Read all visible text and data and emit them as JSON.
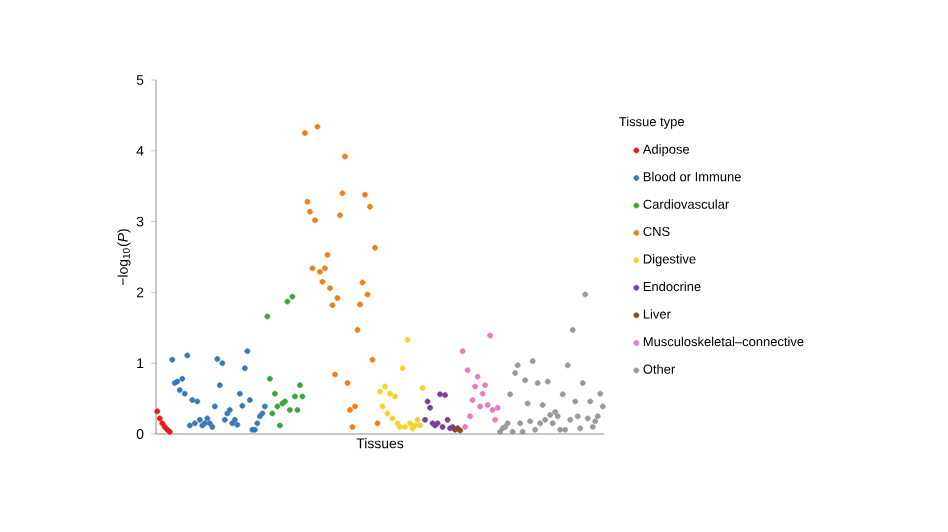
{
  "chart_data": {
    "type": "scatter",
    "xlabel": "Tissues",
    "ylabel": "−log$_{10}$(*P*)",
    "legend_title": "Tissue type",
    "legend": "right",
    "tick_labels": "y",
    "ylim": [
      0,
      5
    ],
    "yticks": [
      0,
      1,
      2,
      3,
      4,
      5
    ],
    "categories": [
      null,
      null,
      null,
      null,
      null,
      null,
      null,
      null,
      null,
      null,
      null,
      null,
      null,
      null,
      null,
      null,
      null,
      null,
      null,
      null,
      null,
      null,
      null,
      null,
      null,
      null,
      null,
      null,
      null,
      null,
      null,
      null,
      null,
      null,
      null,
      null,
      null,
      null,
      null,
      null,
      null,
      null,
      null,
      null,
      null,
      null,
      null,
      null,
      null,
      null,
      null,
      null,
      null,
      null,
      null,
      null,
      null,
      null,
      null,
      null,
      null,
      null,
      null,
      null,
      null,
      null,
      null,
      null,
      null,
      null,
      null,
      null,
      null,
      null,
      null,
      null,
      null,
      null,
      null,
      null,
      null,
      null,
      null,
      null,
      null,
      null,
      null,
      null,
      null,
      null,
      null,
      null,
      null,
      null,
      null,
      null,
      null,
      null,
      null,
      null,
      null,
      null,
      null,
      null,
      null,
      null,
      null,
      null,
      null,
      null,
      null,
      null,
      null,
      null,
      null,
      null,
      null,
      null,
      null,
      null,
      null,
      null,
      null,
      null,
      null,
      null,
      null,
      null,
      null,
      null,
      null,
      null,
      null,
      null,
      null,
      null,
      null,
      null,
      null,
      null,
      null,
      null,
      null,
      null,
      null,
      null,
      null,
      null,
      null,
      null,
      null,
      null,
      null,
      null,
      null,
      null,
      null,
      null,
      null,
      null,
      null,
      null,
      null,
      null,
      null,
      null,
      null,
      null,
      null,
      null,
      null,
      null,
      null,
      null,
      null,
      null,
      null,
      null,
      null
    ],
    "series": [
      {
        "name": "Adipose",
        "color": "#e41a1c",
        "values": [
          0.32,
          0.22,
          0.15,
          0.1,
          0.06,
          0.03,
          null,
          null,
          null,
          null,
          null,
          null,
          null,
          null,
          null,
          null,
          null,
          null,
          null,
          null,
          null,
          null,
          null,
          null,
          null,
          null,
          null,
          null,
          null,
          null,
          null,
          null,
          null,
          null,
          null,
          null,
          null,
          null,
          null,
          null,
          null,
          null,
          null,
          null,
          null,
          null,
          null,
          null,
          null,
          null,
          null,
          null,
          null,
          null,
          null,
          null,
          null,
          null,
          null,
          null,
          null,
          null,
          null,
          null,
          null,
          null,
          null,
          null,
          null,
          null,
          null,
          null,
          null,
          null,
          null,
          null,
          null,
          null,
          null,
          null,
          null,
          null,
          null,
          null,
          null,
          null,
          null,
          null,
          null,
          null,
          null,
          null,
          null,
          null,
          null,
          null,
          null,
          null,
          null,
          null,
          null,
          null,
          null,
          null,
          null,
          null,
          null,
          null,
          null,
          null,
          null,
          null,
          null,
          null,
          null,
          null,
          null,
          null,
          null,
          null,
          null,
          null,
          null,
          null,
          null,
          null,
          null,
          null,
          null,
          null,
          null,
          null,
          null,
          null,
          null,
          null,
          null,
          null,
          null,
          null,
          null,
          null,
          null,
          null,
          null,
          null,
          null,
          null,
          null,
          null,
          null,
          null,
          null,
          null,
          null,
          null,
          null,
          null,
          null,
          null,
          null,
          null,
          null,
          null,
          null,
          null,
          null,
          null,
          null,
          null,
          null,
          null,
          null,
          null,
          null,
          null,
          null,
          null,
          null
        ]
      },
      {
        "name": "Blood or Immune",
        "color": "#3a78b8",
        "values": [
          null,
          null,
          null,
          null,
          null,
          null,
          1.05,
          0.72,
          0.74,
          0.62,
          0.78,
          0.57,
          1.11,
          0.12,
          0.48,
          0.15,
          0.46,
          0.2,
          0.12,
          0.15,
          0.22,
          0.15,
          0.1,
          0.39,
          1.06,
          0.69,
          1.0,
          0.2,
          0.29,
          0.34,
          0.15,
          0.2,
          0.13,
          0.57,
          0.4,
          0.93,
          1.17,
          0.48,
          0.06,
          0.06,
          0.15,
          0.25,
          0.29,
          0.39,
          null,
          null,
          null,
          null,
          null,
          null,
          null,
          null,
          null,
          null,
          null,
          null,
          null,
          null,
          null,
          null,
          null,
          null,
          null,
          null,
          null,
          null,
          null,
          null,
          null,
          null,
          null,
          null,
          null,
          null,
          null,
          null,
          null,
          null,
          null,
          null,
          null,
          null,
          null,
          null,
          null,
          null,
          null,
          null,
          null,
          null,
          null,
          null,
          null,
          null,
          null,
          null,
          null,
          null,
          null,
          null,
          null,
          null,
          null,
          null,
          null,
          null,
          null,
          null,
          null,
          null,
          null,
          null,
          null,
          null,
          null,
          null,
          null,
          null,
          null,
          null,
          null,
          null,
          null,
          null,
          null,
          null,
          null,
          null,
          null,
          null,
          null,
          null,
          null,
          null,
          null,
          null,
          null,
          null,
          null,
          null,
          null,
          null,
          null,
          null,
          null,
          null,
          null,
          null,
          null,
          null,
          null,
          null,
          null,
          null,
          null,
          null,
          null,
          null,
          null,
          null,
          null,
          null,
          null,
          null,
          null,
          null,
          null,
          null,
          null,
          null,
          null,
          null,
          null,
          null,
          null,
          null,
          null,
          null,
          null
        ]
      },
      {
        "name": "Cardiovascular",
        "color": "#3aa53a",
        "values": [
          null,
          null,
          null,
          null,
          null,
          null,
          null,
          null,
          null,
          null,
          null,
          null,
          null,
          null,
          null,
          null,
          null,
          null,
          null,
          null,
          null,
          null,
          null,
          null,
          null,
          null,
          null,
          null,
          null,
          null,
          null,
          null,
          null,
          null,
          null,
          null,
          null,
          null,
          null,
          null,
          null,
          null,
          null,
          null,
          1.66,
          0.78,
          0.29,
          0.57,
          0.39,
          0.12,
          0.43,
          0.46,
          1.87,
          0.34,
          1.94,
          0.53,
          0.34,
          0.69,
          0.53,
          null,
          null,
          null,
          null,
          null,
          null,
          null,
          null,
          null,
          null,
          null,
          null,
          null,
          null,
          null,
          null,
          null,
          null,
          null,
          null,
          null,
          null,
          null,
          null,
          null,
          null,
          null,
          null,
          null,
          null,
          null,
          null,
          null,
          null,
          null,
          null,
          null,
          null,
          null,
          null,
          null,
          null,
          null,
          null,
          null,
          null,
          null,
          null,
          null,
          null,
          null,
          null,
          null,
          null,
          null,
          null,
          null,
          null,
          null,
          null,
          null,
          null,
          null,
          null,
          null,
          null,
          null,
          null,
          null,
          null,
          null,
          null,
          null,
          null,
          null,
          null,
          null,
          null,
          null,
          null,
          null,
          null,
          null,
          null,
          null,
          null,
          null,
          null,
          null,
          null,
          null,
          null,
          null,
          null,
          null,
          null,
          null,
          null,
          null,
          null,
          null,
          null,
          null,
          null,
          null,
          null,
          null,
          null,
          null,
          null,
          null,
          null,
          null,
          null,
          null,
          null,
          null,
          null,
          null,
          null
        ]
      },
      {
        "name": "CNS",
        "color": "#f07f1a",
        "values": [
          null,
          null,
          null,
          null,
          null,
          null,
          null,
          null,
          null,
          null,
          null,
          null,
          null,
          null,
          null,
          null,
          null,
          null,
          null,
          null,
          null,
          null,
          null,
          null,
          null,
          null,
          null,
          null,
          null,
          null,
          null,
          null,
          null,
          null,
          null,
          null,
          null,
          null,
          null,
          null,
          null,
          null,
          null,
          null,
          null,
          null,
          null,
          null,
          null,
          null,
          null,
          null,
          null,
          null,
          null,
          null,
          null,
          null,
          null,
          4.25,
          3.28,
          3.14,
          2.34,
          3.02,
          4.34,
          2.29,
          2.15,
          2.34,
          2.53,
          2.06,
          1.82,
          0.84,
          1.92,
          3.09,
          3.4,
          3.92,
          0.72,
          0.34,
          0.1,
          0.39,
          1.47,
          1.83,
          2.14,
          3.38,
          1.97,
          3.21,
          1.05,
          2.63,
          0.15,
          null,
          null,
          null,
          null,
          null,
          null,
          null,
          null,
          null,
          null,
          null,
          null,
          null,
          null,
          null,
          null,
          null,
          null,
          null,
          null,
          null,
          null,
          null,
          null,
          null,
          null,
          null,
          null,
          null,
          null,
          null,
          null,
          null,
          null,
          null,
          null,
          null,
          null,
          null,
          null,
          null,
          null,
          null,
          null,
          null,
          null,
          null,
          null,
          null,
          null,
          null,
          null,
          null,
          null,
          null,
          null,
          null,
          null,
          null,
          null,
          null,
          null,
          null,
          null,
          null,
          null,
          null,
          null,
          null,
          null,
          null,
          null,
          null,
          null,
          null,
          null,
          null,
          null,
          null,
          null,
          null,
          null,
          null,
          null,
          null,
          null,
          null,
          null,
          null,
          null
        ]
      },
      {
        "name": "Digestive",
        "color": "#f5d327",
        "values": [
          null,
          null,
          null,
          null,
          null,
          null,
          null,
          null,
          null,
          null,
          null,
          null,
          null,
          null,
          null,
          null,
          null,
          null,
          null,
          null,
          null,
          null,
          null,
          null,
          null,
          null,
          null,
          null,
          null,
          null,
          null,
          null,
          null,
          null,
          null,
          null,
          null,
          null,
          null,
          null,
          null,
          null,
          null,
          null,
          null,
          null,
          null,
          null,
          null,
          null,
          null,
          null,
          null,
          null,
          null,
          null,
          null,
          null,
          null,
          null,
          null,
          null,
          null,
          null,
          null,
          null,
          null,
          null,
          null,
          null,
          null,
          null,
          null,
          null,
          null,
          null,
          null,
          null,
          null,
          null,
          null,
          null,
          null,
          null,
          null,
          null,
          null,
          null,
          null,
          0.6,
          0.39,
          0.67,
          0.29,
          0.57,
          0.22,
          0.53,
          0.15,
          0.1,
          0.93,
          0.1,
          1.33,
          0.15,
          0.08,
          0.12,
          0.2,
          0.12,
          0.65,
          null,
          null,
          null,
          null,
          null,
          null,
          null,
          null,
          null,
          null,
          null,
          null,
          null,
          null,
          null,
          null,
          null,
          null,
          null,
          null,
          null,
          null,
          null,
          null,
          null,
          null,
          null,
          null,
          null,
          null,
          null,
          null,
          null,
          null,
          null,
          null,
          null,
          null,
          null,
          null,
          null,
          null,
          null,
          null,
          null,
          null,
          null,
          null,
          null,
          null,
          null,
          null,
          null,
          null,
          null,
          null,
          null,
          null,
          null,
          null,
          null,
          null,
          null,
          null,
          null,
          null,
          null,
          null,
          null,
          null,
          null,
          null
        ]
      },
      {
        "name": "Endocrine",
        "color": "#7a3f9a",
        "values": [
          null,
          null,
          null,
          null,
          null,
          null,
          null,
          null,
          null,
          null,
          null,
          null,
          null,
          null,
          null,
          null,
          null,
          null,
          null,
          null,
          null,
          null,
          null,
          null,
          null,
          null,
          null,
          null,
          null,
          null,
          null,
          null,
          null,
          null,
          null,
          null,
          null,
          null,
          null,
          null,
          null,
          null,
          null,
          null,
          null,
          null,
          null,
          null,
          null,
          null,
          null,
          null,
          null,
          null,
          null,
          null,
          null,
          null,
          null,
          null,
          null,
          null,
          null,
          null,
          null,
          null,
          null,
          null,
          null,
          null,
          null,
          null,
          null,
          null,
          null,
          null,
          null,
          null,
          null,
          null,
          null,
          null,
          null,
          null,
          null,
          null,
          null,
          null,
          null,
          null,
          null,
          null,
          null,
          null,
          null,
          null,
          null,
          null,
          null,
          null,
          null,
          null,
          null,
          null,
          null,
          null,
          null,
          0.2,
          0.46,
          0.37,
          0.15,
          0.12,
          0.15,
          0.56,
          0.1,
          0.55,
          0.2,
          0.08,
          0.1,
          null,
          null,
          null,
          null,
          null,
          null,
          null,
          null,
          null,
          null,
          null,
          null,
          null,
          null,
          null,
          null,
          null,
          null,
          null,
          null,
          null,
          null,
          null,
          null,
          null,
          null,
          null,
          null,
          null,
          null,
          null,
          null,
          null,
          null,
          null,
          null,
          null,
          null,
          null,
          null,
          null,
          null,
          null,
          null,
          null,
          null,
          null,
          null,
          null,
          null,
          null,
          null,
          null,
          null,
          null,
          null,
          null,
          null,
          null,
          null
        ]
      },
      {
        "name": "Liver",
        "color": "#8b4a1e",
        "values": [
          null,
          null,
          null,
          null,
          null,
          null,
          null,
          null,
          null,
          null,
          null,
          null,
          null,
          null,
          null,
          null,
          null,
          null,
          null,
          null,
          null,
          null,
          null,
          null,
          null,
          null,
          null,
          null,
          null,
          null,
          null,
          null,
          null,
          null,
          null,
          null,
          null,
          null,
          null,
          null,
          null,
          null,
          null,
          null,
          null,
          null,
          null,
          null,
          null,
          null,
          null,
          null,
          null,
          null,
          null,
          null,
          null,
          null,
          null,
          null,
          null,
          null,
          null,
          null,
          null,
          null,
          null,
          null,
          null,
          null,
          null,
          null,
          null,
          null,
          null,
          null,
          null,
          null,
          null,
          null,
          null,
          null,
          null,
          null,
          null,
          null,
          null,
          null,
          null,
          null,
          null,
          null,
          null,
          null,
          null,
          null,
          null,
          null,
          null,
          null,
          null,
          null,
          null,
          null,
          null,
          null,
          null,
          null,
          null,
          null,
          null,
          null,
          null,
          null,
          null,
          null,
          null,
          null,
          null,
          0.06,
          0.08,
          0.05,
          null,
          null,
          null,
          null,
          null,
          null,
          null,
          null,
          null,
          null,
          null,
          null,
          null,
          null,
          null,
          null,
          null,
          null,
          null,
          null,
          null,
          null,
          null,
          null,
          null,
          null,
          null,
          null,
          null,
          null,
          null,
          null,
          null,
          null,
          null,
          null,
          null,
          null,
          null,
          null,
          null,
          null,
          null,
          null,
          null,
          null,
          null,
          null,
          null,
          null,
          null,
          null,
          null,
          null,
          null,
          null,
          null
        ]
      },
      {
        "name": "Musculoskeletal–connective",
        "color": "#e77ac0",
        "values": [
          null,
          null,
          null,
          null,
          null,
          null,
          null,
          null,
          null,
          null,
          null,
          null,
          null,
          null,
          null,
          null,
          null,
          null,
          null,
          null,
          null,
          null,
          null,
          null,
          null,
          null,
          null,
          null,
          null,
          null,
          null,
          null,
          null,
          null,
          null,
          null,
          null,
          null,
          null,
          null,
          null,
          null,
          null,
          null,
          null,
          null,
          null,
          null,
          null,
          null,
          null,
          null,
          null,
          null,
          null,
          null,
          null,
          null,
          null,
          null,
          null,
          null,
          null,
          null,
          null,
          null,
          null,
          null,
          null,
          null,
          null,
          null,
          null,
          null,
          null,
          null,
          null,
          null,
          null,
          null,
          null,
          null,
          null,
          null,
          null,
          null,
          null,
          null,
          null,
          null,
          null,
          null,
          null,
          null,
          null,
          null,
          null,
          null,
          null,
          null,
          null,
          null,
          null,
          null,
          null,
          null,
          null,
          null,
          null,
          null,
          null,
          null,
          null,
          null,
          null,
          null,
          null,
          null,
          null,
          null,
          null,
          null,
          1.17,
          0.1,
          0.9,
          0.25,
          0.48,
          0.67,
          0.81,
          0.39,
          0.57,
          0.69,
          0.41,
          1.39,
          0.34,
          0.2,
          0.37,
          null,
          null,
          null,
          null,
          null,
          null,
          null,
          null,
          null,
          null,
          null,
          null,
          null,
          null,
          null,
          null,
          null,
          null,
          null,
          null,
          null,
          null,
          null,
          null,
          null,
          null,
          null,
          null,
          null,
          null,
          null,
          null,
          null,
          null,
          null,
          null,
          null,
          null,
          null,
          null,
          null,
          null
        ]
      },
      {
        "name": "Other",
        "color": "#999999",
        "values": [
          null,
          null,
          null,
          null,
          null,
          null,
          null,
          null,
          null,
          null,
          null,
          null,
          null,
          null,
          null,
          null,
          null,
          null,
          null,
          null,
          null,
          null,
          null,
          null,
          null,
          null,
          null,
          null,
          null,
          null,
          null,
          null,
          null,
          null,
          null,
          null,
          null,
          null,
          null,
          null,
          null,
          null,
          null,
          null,
          null,
          null,
          null,
          null,
          null,
          null,
          null,
          null,
          null,
          null,
          null,
          null,
          null,
          null,
          null,
          null,
          null,
          null,
          null,
          null,
          null,
          null,
          null,
          null,
          null,
          null,
          null,
          null,
          null,
          null,
          null,
          null,
          null,
          null,
          null,
          null,
          null,
          null,
          null,
          null,
          null,
          null,
          null,
          null,
          null,
          null,
          null,
          null,
          null,
          null,
          null,
          null,
          null,
          null,
          null,
          null,
          null,
          null,
          null,
          null,
          null,
          null,
          null,
          null,
          null,
          null,
          null,
          null,
          null,
          null,
          null,
          null,
          null,
          null,
          null,
          null,
          null,
          null,
          null,
          null,
          null,
          null,
          null,
          null,
          null,
          null,
          null,
          null,
          null,
          null,
          null,
          null,
          null,
          0.03,
          0.08,
          0.1,
          0.15,
          0.56,
          0.03,
          0.86,
          0.97,
          0.15,
          0.03,
          0.76,
          0.43,
          0.18,
          1.03,
          0.06,
          0.72,
          0.15,
          0.41,
          0.2,
          0.74,
          0.27,
          0.15,
          0.31,
          0.25,
          0.06,
          0.56,
          0.06,
          0.97,
          0.2,
          1.47,
          0.46,
          0.25,
          0.08,
          0.72,
          1.97,
          0.22,
          0.46,
          0.1,
          0.18,
          0.25,
          0.57,
          0.39
        ]
      }
    ]
  }
}
